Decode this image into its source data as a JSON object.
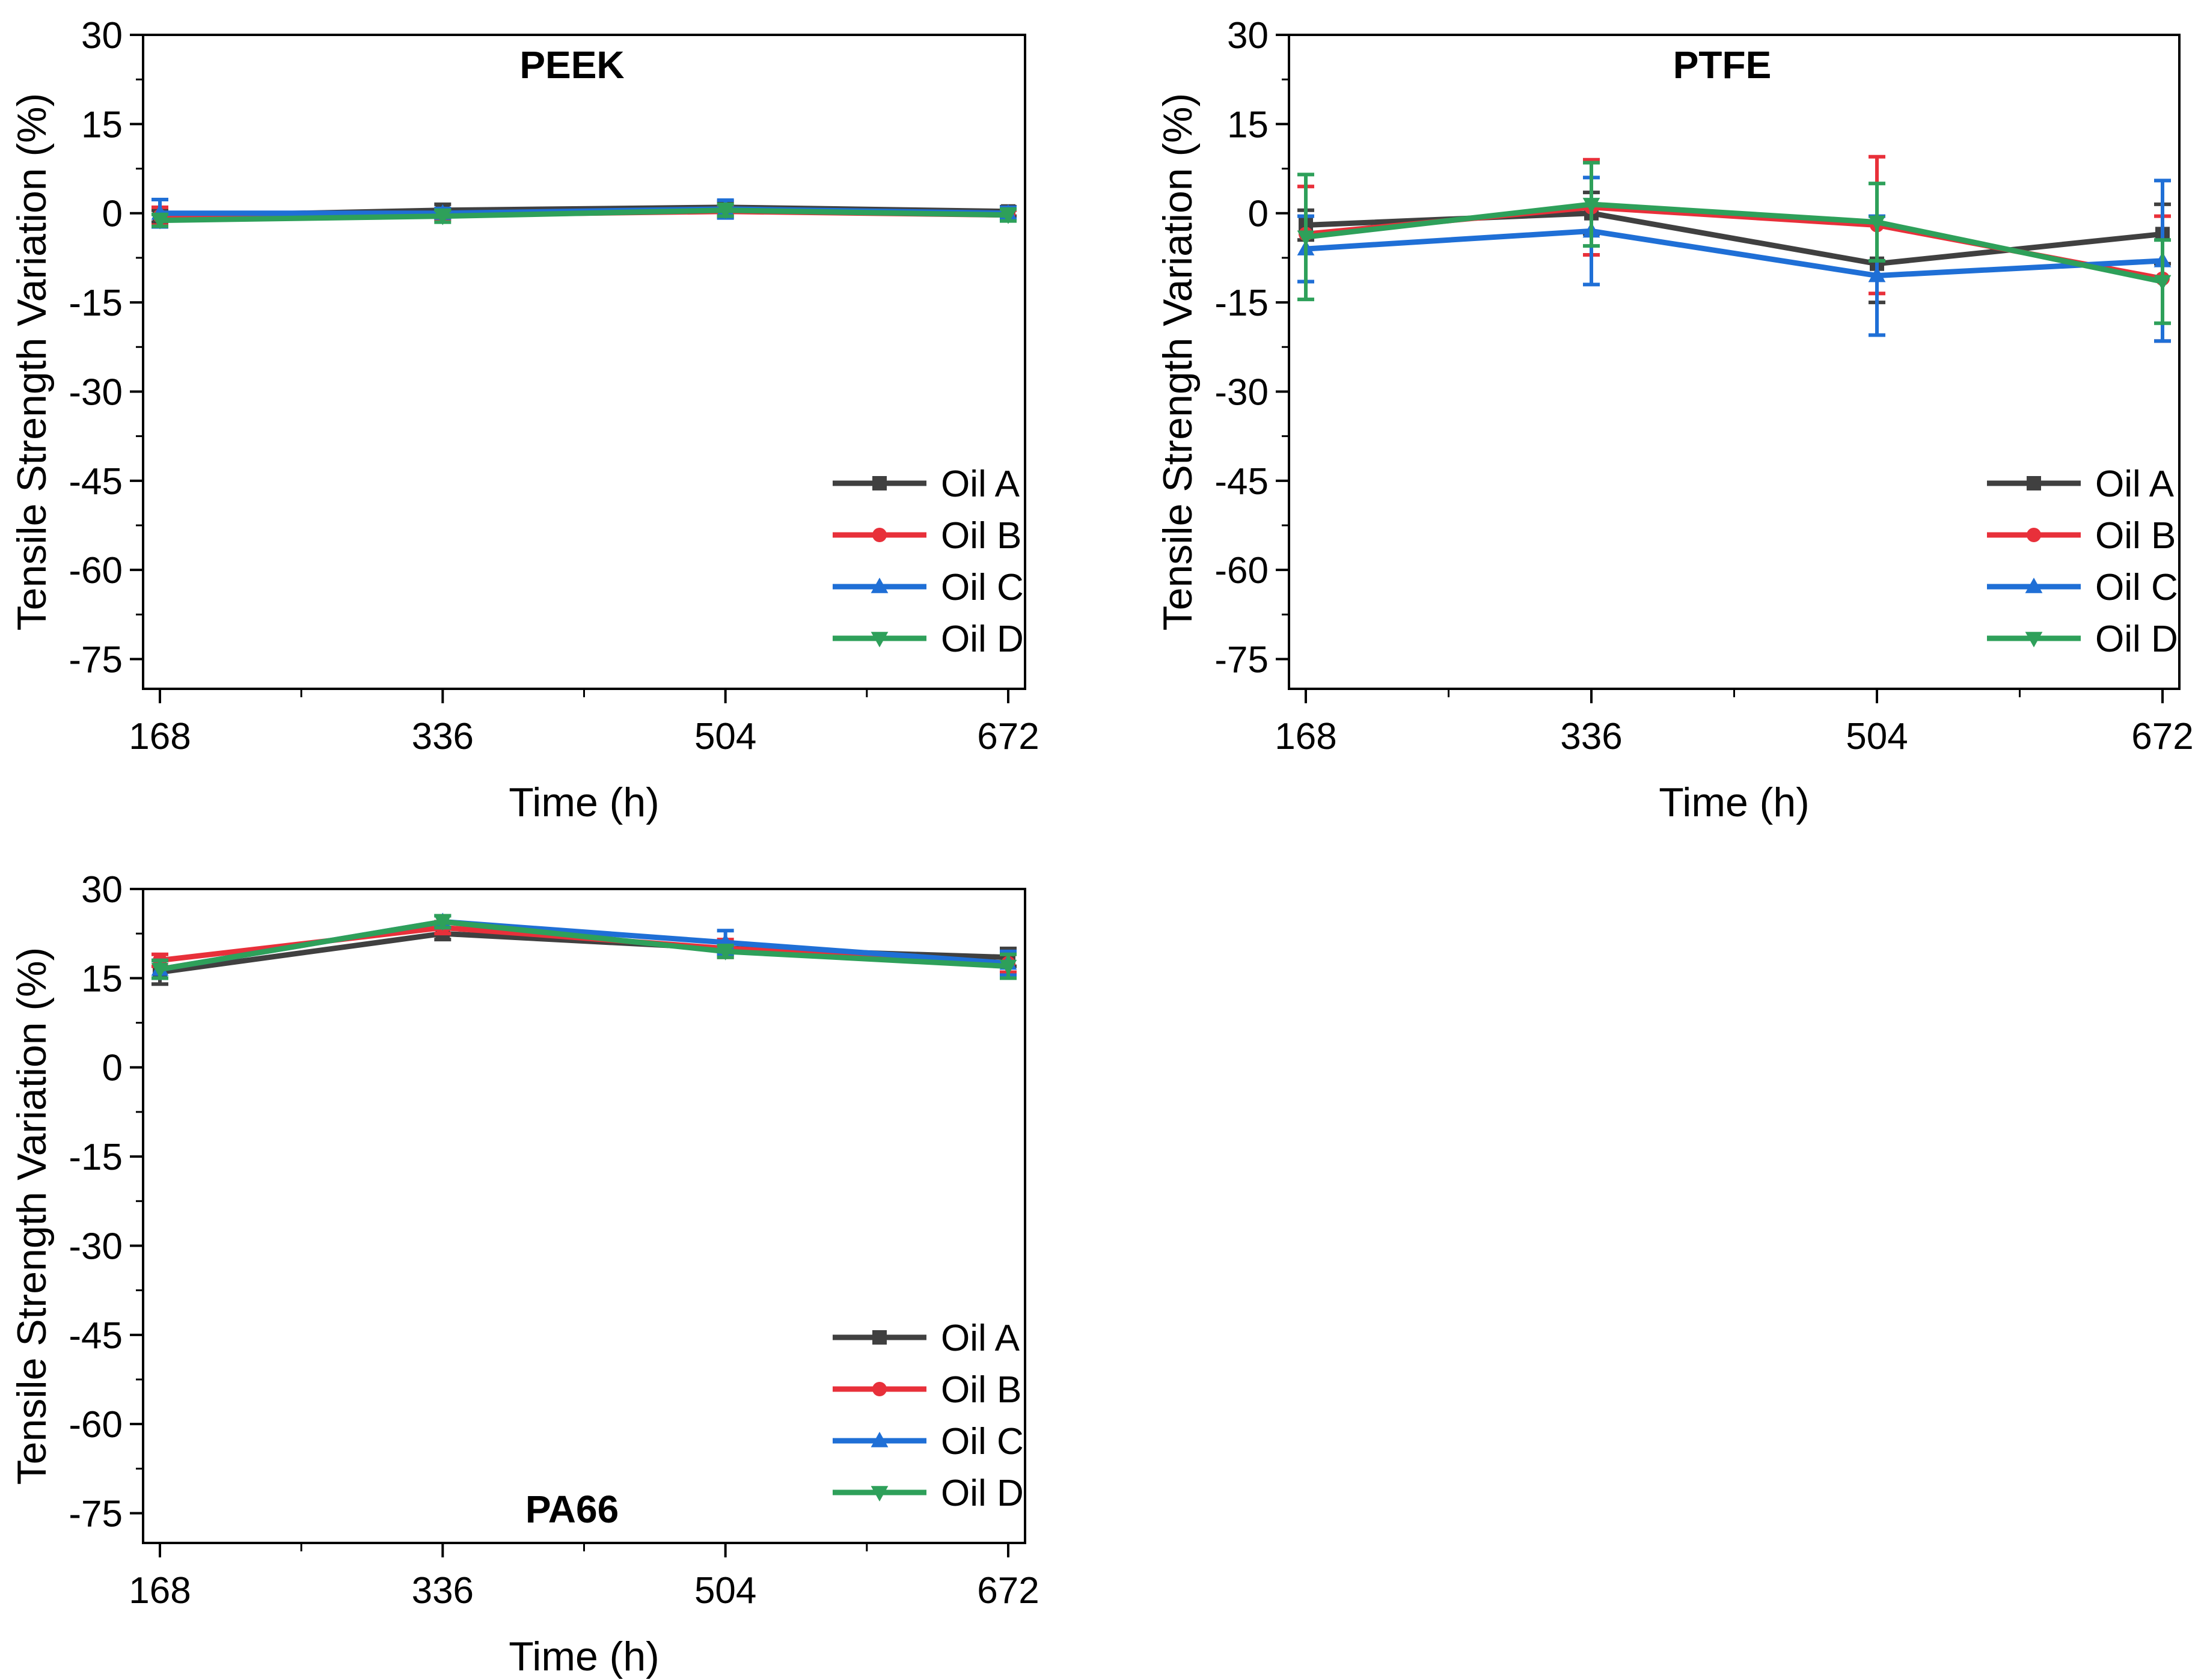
{
  "legend_entries": [
    "Oil A",
    "Oil B",
    "Oil C",
    "Oil D"
  ],
  "series_colors": {
    "Oil A": "#404040",
    "Oil B": "#e8303a",
    "Oil C": "#1f6fd6",
    "Oil D": "#2ea05a"
  },
  "series_markers": {
    "Oil A": "square",
    "Oil B": "circle",
    "Oil C": "triangle-up",
    "Oil D": "triangle-down"
  },
  "chart_data": [
    {
      "type": "line",
      "title": "PEEK",
      "xlabel": "Time (h)",
      "ylabel": "Tensile Strength Variation (%)",
      "x": [
        168,
        336,
        504,
        672
      ],
      "x_ticks": [
        "168",
        "336",
        "504",
        "672"
      ],
      "xlim": [
        168,
        672
      ],
      "y_ticks": [
        "30",
        "15",
        "0",
        "-15",
        "-30",
        "-45",
        "-60",
        "-75"
      ],
      "ylim": [
        -80,
        30
      ],
      "title_position": "top-center",
      "legend_position": "bottom-right",
      "series": [
        {
          "name": "Oil A",
          "values": [
            -0.5,
            0.5,
            1.0,
            0.3
          ],
          "errors": [
            1.0,
            1.0,
            1.0,
            0.8
          ]
        },
        {
          "name": "Oil B",
          "values": [
            -0.5,
            -0.3,
            0.3,
            -0.3
          ],
          "errors": [
            1.5,
            0.8,
            1.0,
            0.8
          ]
        },
        {
          "name": "Oil C",
          "values": [
            0.0,
            0.0,
            0.7,
            0.0
          ],
          "errors": [
            2.3,
            0.8,
            1.5,
            1.0
          ]
        },
        {
          "name": "Oil D",
          "values": [
            -1.2,
            -0.5,
            0.5,
            -0.3
          ],
          "errors": [
            1.0,
            1.0,
            1.0,
            1.0
          ]
        }
      ]
    },
    {
      "type": "line",
      "title": "PTFE",
      "xlabel": "Time (h)",
      "ylabel": "Tensile Strength Variation (%)",
      "x": [
        168,
        336,
        504,
        672
      ],
      "x_ticks": [
        "168",
        "336",
        "504",
        "672"
      ],
      "xlim": [
        168,
        672
      ],
      "y_ticks": [
        "30",
        "15",
        "0",
        "-15",
        "-30",
        "-45",
        "-60",
        "-75"
      ],
      "ylim": [
        -80,
        30
      ],
      "title_position": "top-center",
      "legend_position": "bottom-right",
      "series": [
        {
          "name": "Oil A",
          "values": [
            -2.0,
            0.0,
            -8.5,
            -3.5
          ],
          "errors": [
            2.5,
            3.5,
            6.5,
            5.0
          ]
        },
        {
          "name": "Oil B",
          "values": [
            -3.5,
            1.0,
            -2.0,
            -11.0
          ],
          "errors": [
            8.0,
            8.0,
            11.5,
            10.5
          ]
        },
        {
          "name": "Oil C",
          "values": [
            -6.0,
            -3.0,
            -10.5,
            -8.0
          ],
          "errors": [
            5.5,
            9.0,
            10.0,
            13.5
          ]
        },
        {
          "name": "Oil D",
          "values": [
            -4.0,
            1.5,
            -1.5,
            -11.5
          ],
          "errors": [
            10.5,
            7.0,
            6.5,
            7.0
          ]
        }
      ]
    },
    {
      "type": "line",
      "title": "PA66",
      "xlabel": "Time (h)",
      "ylabel": "Tensile Strength Variation (%)",
      "x": [
        168,
        336,
        504,
        672
      ],
      "x_ticks": [
        "168",
        "336",
        "504",
        "672"
      ],
      "xlim": [
        168,
        672
      ],
      "y_ticks": [
        "30",
        "15",
        "0",
        "-15",
        "-30",
        "-45",
        "-60",
        "-75"
      ],
      "ylim": [
        -80,
        30
      ],
      "title_position": "bottom-center",
      "legend_position": "bottom-right",
      "series": [
        {
          "name": "Oil A",
          "values": [
            16.0,
            22.5,
            20.0,
            18.5
          ],
          "errors": [
            2.0,
            1.0,
            1.0,
            1.5
          ]
        },
        {
          "name": "Oil B",
          "values": [
            18.0,
            23.5,
            20.0,
            17.5
          ],
          "errors": [
            1.0,
            1.0,
            1.5,
            1.5
          ]
        },
        {
          "name": "Oil C",
          "values": [
            16.5,
            24.5,
            21.0,
            17.5
          ],
          "errors": [
            1.5,
            1.0,
            2.0,
            2.0
          ]
        },
        {
          "name": "Oil D",
          "values": [
            16.5,
            24.5,
            19.5,
            17.0
          ],
          "errors": [
            1.5,
            1.0,
            1.0,
            2.0
          ]
        }
      ]
    }
  ]
}
